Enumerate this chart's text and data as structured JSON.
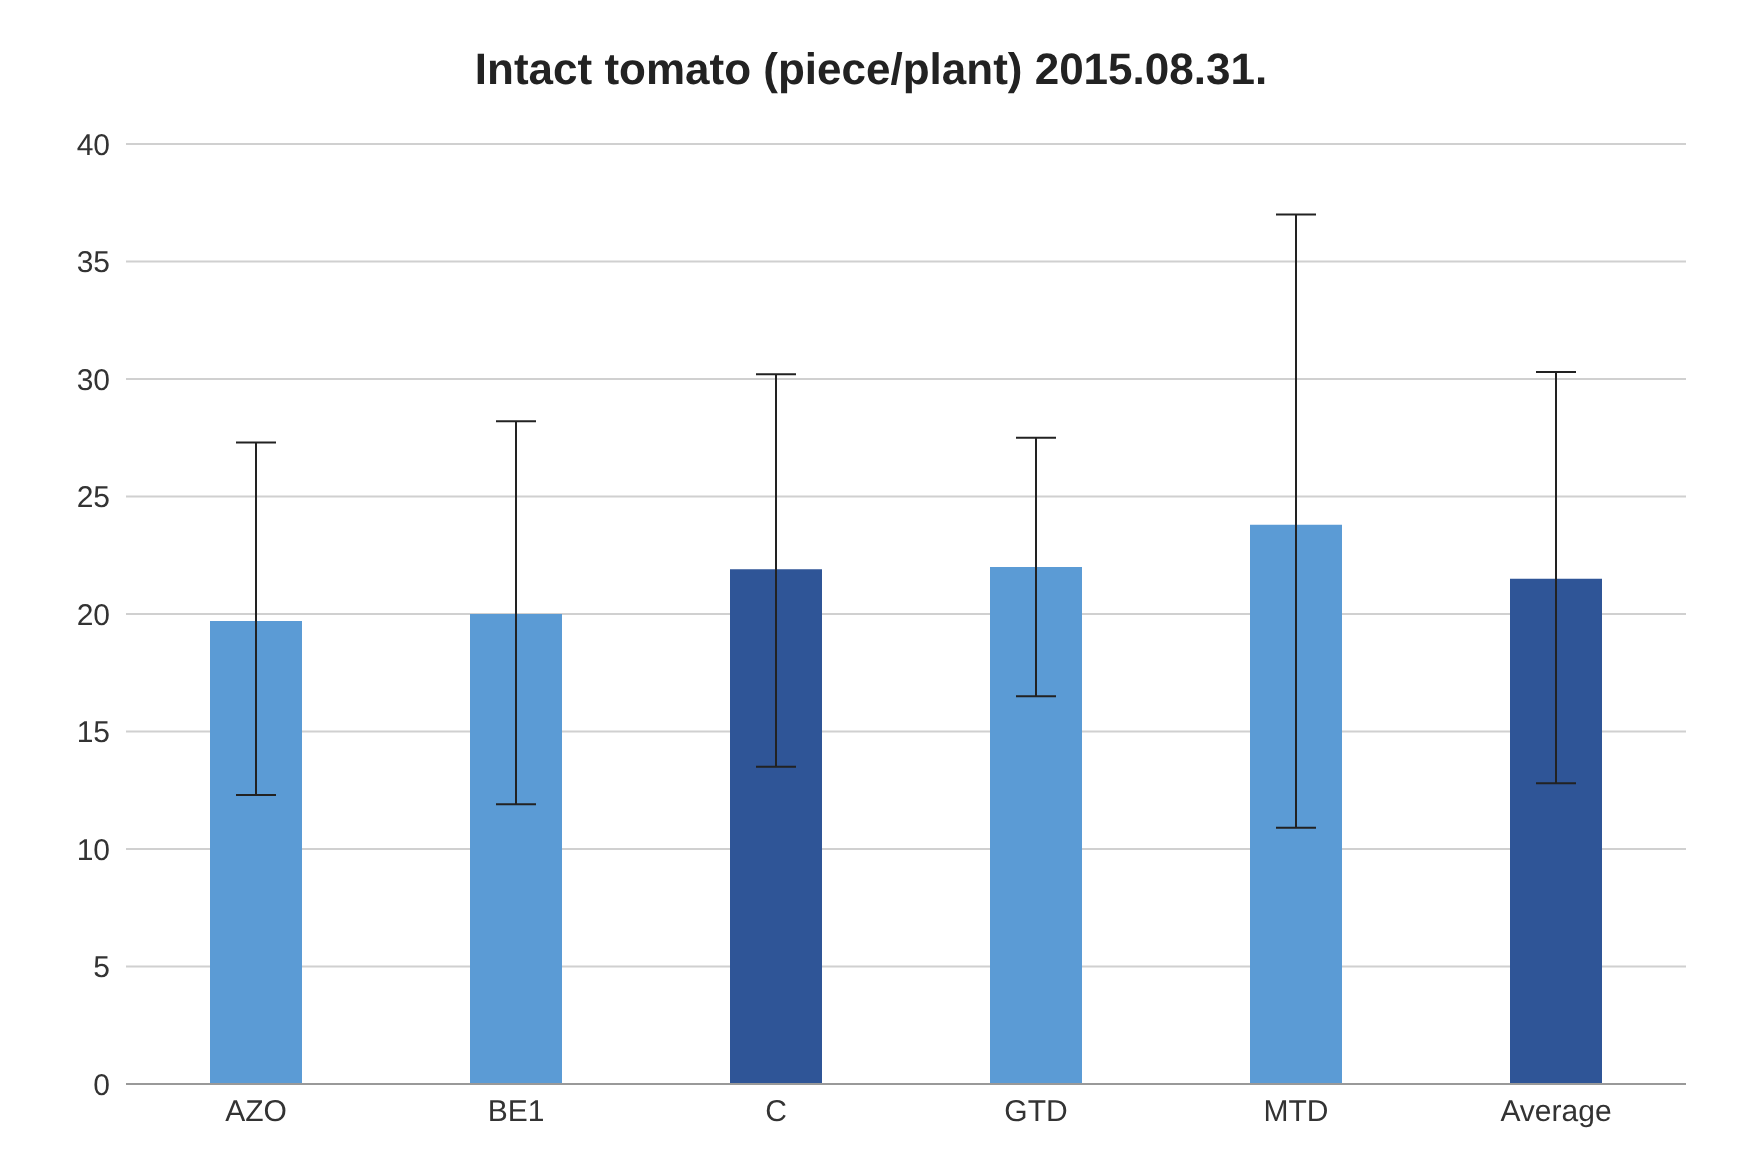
{
  "chart_data": {
    "type": "bar",
    "title": "Intact tomato (piece/plant) 2015.08.31.",
    "categories": [
      "AZO",
      "BE1",
      "C",
      "GTD",
      "MTD",
      "Average"
    ],
    "values": [
      19.7,
      20.0,
      21.9,
      22.0,
      23.8,
      21.5
    ],
    "colors": [
      "#5b9bd5",
      "#5b9bd5",
      "#2f5597",
      "#5b9bd5",
      "#5b9bd5",
      "#2f5597"
    ],
    "errors": [
      [
        12.3,
        27.3
      ],
      [
        11.9,
        28.2
      ],
      [
        13.5,
        30.2
      ],
      [
        16.5,
        27.5
      ],
      [
        10.9,
        37.0
      ],
      [
        12.8,
        30.3
      ]
    ],
    "ylim": [
      0,
      40
    ],
    "yticks": [
      0,
      5,
      10,
      15,
      20,
      25,
      30,
      35,
      40
    ],
    "grid": "y"
  }
}
